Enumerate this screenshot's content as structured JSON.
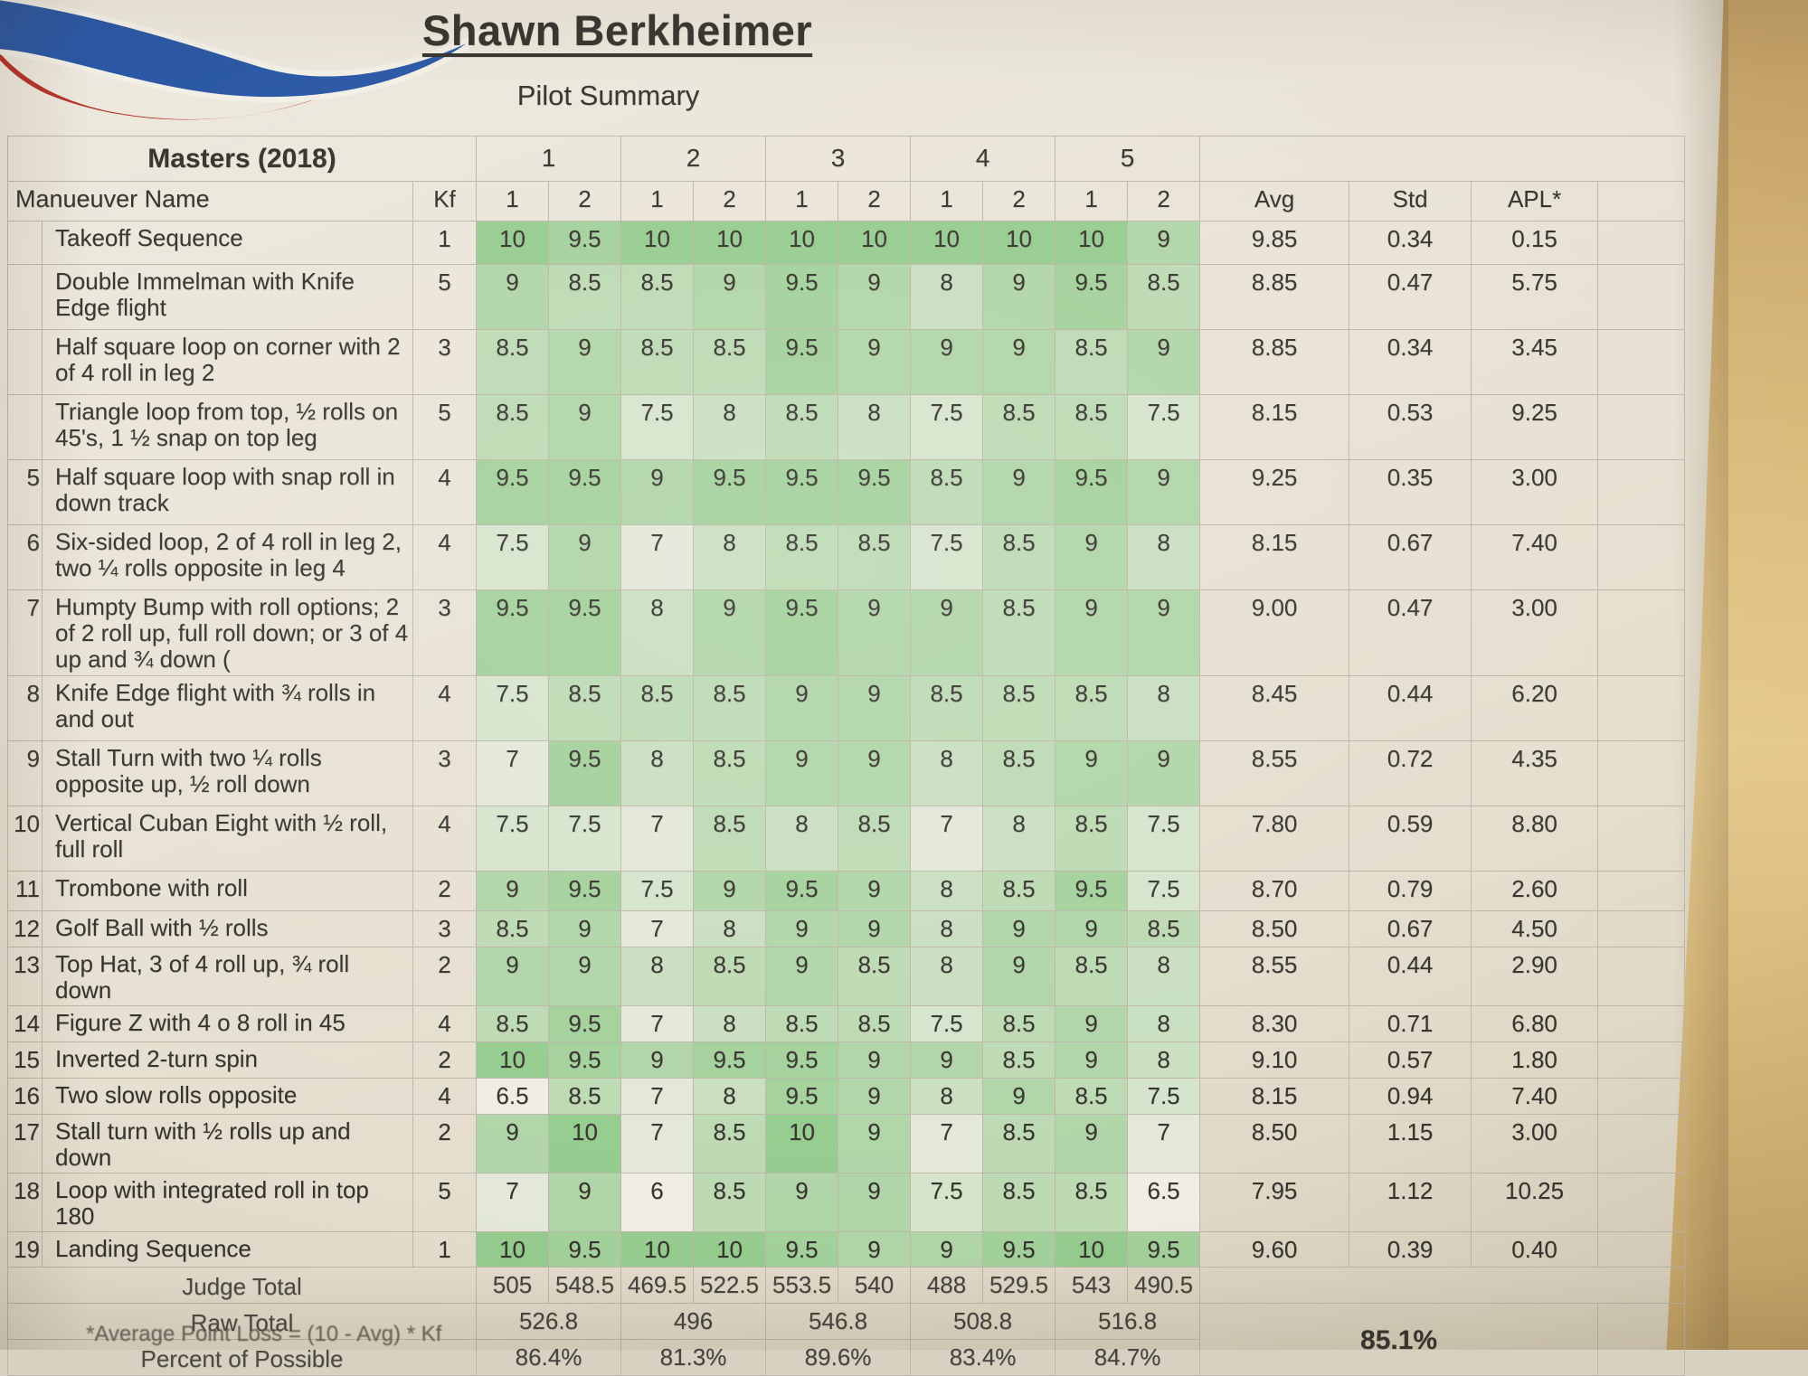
{
  "page": {
    "title": "Shawn Berkheimer",
    "subtitle": "Pilot Summary",
    "footnote": "*Average Point Loss = (10 - Avg) * Kf"
  },
  "logo": {
    "name": "club-swoosh-logo",
    "blue": "#2a57a5",
    "red": "#b5322c"
  },
  "colors": {
    "score_green_max": "#96cc8f",
    "paper": "#ece7dc",
    "table_surface_tan": "#d9b97a"
  },
  "table": {
    "class_header": "Masters (2018)",
    "flight_headers": [
      "1",
      "2",
      "3",
      "4",
      "5"
    ],
    "col_headers": {
      "name": "Manueuver Name",
      "kf": "Kf",
      "judge": [
        "1",
        "2"
      ],
      "avg": "Avg",
      "std": "Std",
      "apl": "APL*"
    },
    "rows": [
      {
        "num": "",
        "name": "Takeoff Sequence",
        "kf": "1",
        "scores": [
          10,
          9.5,
          10,
          10,
          10,
          10,
          10,
          10,
          10,
          9
        ],
        "avg": "9.85",
        "std": "0.34",
        "apl": "0.15"
      },
      {
        "num": "",
        "name": "Double Immelman with Knife Edge flight",
        "kf": "5",
        "scores": [
          9,
          8.5,
          8.5,
          9,
          9.5,
          9,
          8,
          9,
          9.5,
          8.5
        ],
        "avg": "8.85",
        "std": "0.47",
        "apl": "5.75"
      },
      {
        "num": "",
        "name": "Half square loop on corner with 2 of 4 roll in leg 2",
        "kf": "3",
        "scores": [
          8.5,
          9,
          8.5,
          8.5,
          9.5,
          9,
          9,
          9,
          8.5,
          9
        ],
        "avg": "8.85",
        "std": "0.34",
        "apl": "3.45"
      },
      {
        "num": "",
        "name": "Triangle loop from top, ½ rolls on 45's, 1 ½ snap on top leg",
        "kf": "5",
        "scores": [
          8.5,
          9,
          7.5,
          8,
          8.5,
          8,
          7.5,
          8.5,
          8.5,
          7.5
        ],
        "avg": "8.15",
        "std": "0.53",
        "apl": "9.25"
      },
      {
        "num": "5",
        "name": "Half square loop with snap roll in down track",
        "kf": "4",
        "scores": [
          9.5,
          9.5,
          9,
          9.5,
          9.5,
          9.5,
          8.5,
          9,
          9.5,
          9
        ],
        "avg": "9.25",
        "std": "0.35",
        "apl": "3.00"
      },
      {
        "num": "6",
        "name": "Six-sided loop, 2 of 4 roll in leg 2, two ¼ rolls opposite in leg 4",
        "kf": "4",
        "scores": [
          7.5,
          9,
          7,
          8,
          8.5,
          8.5,
          7.5,
          8.5,
          9,
          8
        ],
        "avg": "8.15",
        "std": "0.67",
        "apl": "7.40"
      },
      {
        "num": "7",
        "name": "Humpty Bump with roll options; 2 of 2 roll up, full roll down; or 3 of 4 up and ¾ down (",
        "kf": "3",
        "scores": [
          9.5,
          9.5,
          8,
          9,
          9.5,
          9,
          9,
          8.5,
          9,
          9
        ],
        "avg": "9.00",
        "std": "0.47",
        "apl": "3.00"
      },
      {
        "num": "8",
        "name": "Knife Edge flight with ¾ rolls in and out",
        "kf": "4",
        "scores": [
          7.5,
          8.5,
          8.5,
          8.5,
          9,
          9,
          8.5,
          8.5,
          8.5,
          8
        ],
        "avg": "8.45",
        "std": "0.44",
        "apl": "6.20"
      },
      {
        "num": "9",
        "name": "Stall Turn with two ¼ rolls opposite up, ½ roll down",
        "kf": "3",
        "scores": [
          7,
          9.5,
          8,
          8.5,
          9,
          9,
          8,
          8.5,
          9,
          9
        ],
        "avg": "8.55",
        "std": "0.72",
        "apl": "4.35"
      },
      {
        "num": "10",
        "name": "Vertical Cuban Eight with ½ roll, full roll",
        "kf": "4",
        "scores": [
          7.5,
          7.5,
          7,
          8.5,
          8,
          8.5,
          7,
          8,
          8.5,
          7.5
        ],
        "avg": "7.80",
        "std": "0.59",
        "apl": "8.80"
      },
      {
        "num": "11",
        "name": "Trombone with roll",
        "kf": "2",
        "scores": [
          9,
          9.5,
          7.5,
          9,
          9.5,
          9,
          8,
          8.5,
          9.5,
          7.5
        ],
        "avg": "8.70",
        "std": "0.79",
        "apl": "2.60"
      },
      {
        "num": "12",
        "name": "Golf Ball with ½ rolls",
        "kf": "3",
        "scores": [
          8.5,
          9,
          7,
          8,
          9,
          9,
          8,
          9,
          9,
          8.5
        ],
        "avg": "8.50",
        "std": "0.67",
        "apl": "4.50"
      },
      {
        "num": "13",
        "name": "Top Hat, 3 of 4 roll up, ¾ roll down",
        "kf": "2",
        "scores": [
          9,
          9,
          8,
          8.5,
          9,
          8.5,
          8,
          9,
          8.5,
          8
        ],
        "avg": "8.55",
        "std": "0.44",
        "apl": "2.90"
      },
      {
        "num": "14",
        "name": "Figure Z with 4 o 8 roll in 45",
        "kf": "4",
        "scores": [
          8.5,
          9.5,
          7,
          8,
          8.5,
          8.5,
          7.5,
          8.5,
          9,
          8
        ],
        "avg": "8.30",
        "std": "0.71",
        "apl": "6.80"
      },
      {
        "num": "15",
        "name": "Inverted 2-turn spin",
        "kf": "2",
        "scores": [
          10,
          9.5,
          9,
          9.5,
          9.5,
          9,
          9,
          8.5,
          9,
          8
        ],
        "avg": "9.10",
        "std": "0.57",
        "apl": "1.80"
      },
      {
        "num": "16",
        "name": "Two slow rolls opposite",
        "kf": "4",
        "scores": [
          6.5,
          8.5,
          7,
          8,
          9.5,
          9,
          8,
          9,
          8.5,
          7.5
        ],
        "avg": "8.15",
        "std": "0.94",
        "apl": "7.40"
      },
      {
        "num": "17",
        "name": "Stall turn with ½ rolls up and down",
        "kf": "2",
        "scores": [
          9,
          10,
          7,
          8.5,
          10,
          9,
          7,
          8.5,
          9,
          7
        ],
        "avg": "8.50",
        "std": "1.15",
        "apl": "3.00"
      },
      {
        "num": "18",
        "name": "Loop with integrated roll in top 180",
        "kf": "5",
        "scores": [
          7,
          9,
          6,
          8.5,
          9,
          9,
          7.5,
          8.5,
          8.5,
          6.5
        ],
        "avg": "7.95",
        "std": "1.12",
        "apl": "10.25"
      },
      {
        "num": "19",
        "name": "Landing Sequence",
        "kf": "1",
        "scores": [
          10,
          9.5,
          10,
          10,
          9.5,
          9,
          9,
          9.5,
          10,
          9.5
        ],
        "avg": "9.60",
        "std": "0.39",
        "apl": "0.40"
      }
    ],
    "judge_total": {
      "label": "Judge Total",
      "values": [
        "505",
        "548.5",
        "469.5",
        "522.5",
        "553.5",
        "540",
        "488",
        "529.5",
        "543",
        "490.5"
      ]
    },
    "raw_total": {
      "label": "Raw Total",
      "values": [
        "526.8",
        "496",
        "546.8",
        "508.8",
        "516.8"
      ]
    },
    "percent_of_possible": {
      "label": "Percent of Possible",
      "values": [
        "86.4%",
        "81.3%",
        "89.6%",
        "83.4%",
        "84.7%"
      ]
    },
    "overall_percent": "85.1%"
  }
}
